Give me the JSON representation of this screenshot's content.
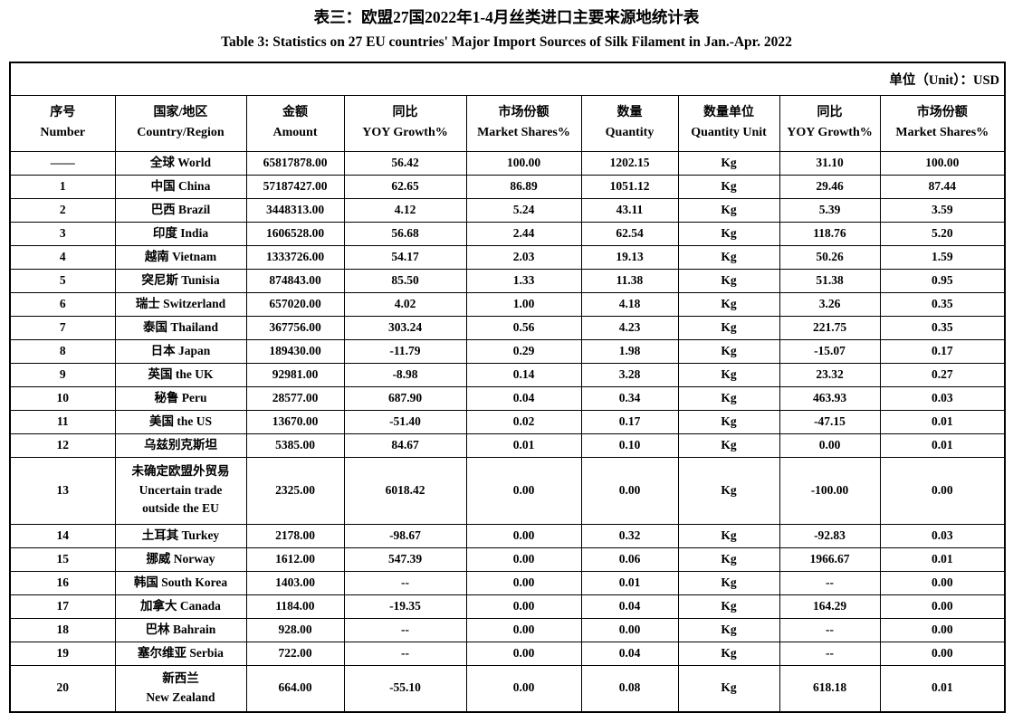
{
  "title_zh": "表三：欧盟27国2022年1-4月丝类进口主要来源地统计表",
  "title_en": "Table 3: Statistics on 27 EU countries' Major Import Sources of Silk Filament in Jan.-Apr. 2022",
  "unit_label": "单位（Unit）：USD",
  "colors": {
    "text": "#000000",
    "border": "#000000",
    "background": "#ffffff"
  },
  "table": {
    "columns": [
      {
        "key": "number",
        "zh": "序号",
        "en": "Number"
      },
      {
        "key": "country",
        "zh": "国家/地区",
        "en": "Country/Region"
      },
      {
        "key": "amount",
        "zh": "金额",
        "en": "Amount"
      },
      {
        "key": "yoy_amount",
        "zh": "同比",
        "en": "YOY Growth%"
      },
      {
        "key": "market_share_amount",
        "zh": "市场份额",
        "en": "Market Shares%"
      },
      {
        "key": "quantity",
        "zh": "数量",
        "en": "Quantity"
      },
      {
        "key": "quantity_unit",
        "zh": "数量单位",
        "en": "Quantity Unit"
      },
      {
        "key": "yoy_quantity",
        "zh": "同比",
        "en": "YOY Growth%"
      },
      {
        "key": "market_share_quantity",
        "zh": "市场份额",
        "en": "Market Shares%"
      }
    ],
    "rows": [
      {
        "number": "——",
        "country": [
          "全球 World"
        ],
        "amount": "65817878.00",
        "yoy_amount": "56.42",
        "market_share_amount": "100.00",
        "quantity": "1202.15",
        "quantity_unit": "Kg",
        "yoy_quantity": "31.10",
        "market_share_quantity": "100.00",
        "lines": 1
      },
      {
        "number": "1",
        "country": [
          "中国 China"
        ],
        "amount": "57187427.00",
        "yoy_amount": "62.65",
        "market_share_amount": "86.89",
        "quantity": "1051.12",
        "quantity_unit": "Kg",
        "yoy_quantity": "29.46",
        "market_share_quantity": "87.44",
        "lines": 1
      },
      {
        "number": "2",
        "country": [
          "巴西 Brazil"
        ],
        "amount": "3448313.00",
        "yoy_amount": "4.12",
        "market_share_amount": "5.24",
        "quantity": "43.11",
        "quantity_unit": "Kg",
        "yoy_quantity": "5.39",
        "market_share_quantity": "3.59",
        "lines": 1
      },
      {
        "number": "3",
        "country": [
          "印度 India"
        ],
        "amount": "1606528.00",
        "yoy_amount": "56.68",
        "market_share_amount": "2.44",
        "quantity": "62.54",
        "quantity_unit": "Kg",
        "yoy_quantity": "118.76",
        "market_share_quantity": "5.20",
        "lines": 1
      },
      {
        "number": "4",
        "country": [
          "越南 Vietnam"
        ],
        "amount": "1333726.00",
        "yoy_amount": "54.17",
        "market_share_amount": "2.03",
        "quantity": "19.13",
        "quantity_unit": "Kg",
        "yoy_quantity": "50.26",
        "market_share_quantity": "1.59",
        "lines": 1
      },
      {
        "number": "5",
        "country": [
          "突尼斯 Tunisia"
        ],
        "amount": "874843.00",
        "yoy_amount": "85.50",
        "market_share_amount": "1.33",
        "quantity": "11.38",
        "quantity_unit": "Kg",
        "yoy_quantity": "51.38",
        "market_share_quantity": "0.95",
        "lines": 1
      },
      {
        "number": "6",
        "country": [
          "瑞士 Switzerland"
        ],
        "amount": "657020.00",
        "yoy_amount": "4.02",
        "market_share_amount": "1.00",
        "quantity": "4.18",
        "quantity_unit": "Kg",
        "yoy_quantity": "3.26",
        "market_share_quantity": "0.35",
        "lines": 1
      },
      {
        "number": "7",
        "country": [
          "泰国 Thailand"
        ],
        "amount": "367756.00",
        "yoy_amount": "303.24",
        "market_share_amount": "0.56",
        "quantity": "4.23",
        "quantity_unit": "Kg",
        "yoy_quantity": "221.75",
        "market_share_quantity": "0.35",
        "lines": 1
      },
      {
        "number": "8",
        "country": [
          "日本 Japan"
        ],
        "amount": "189430.00",
        "yoy_amount": "-11.79",
        "market_share_amount": "0.29",
        "quantity": "1.98",
        "quantity_unit": "Kg",
        "yoy_quantity": "-15.07",
        "market_share_quantity": "0.17",
        "lines": 1
      },
      {
        "number": "9",
        "country": [
          "英国 the UK"
        ],
        "amount": "92981.00",
        "yoy_amount": "-8.98",
        "market_share_amount": "0.14",
        "quantity": "3.28",
        "quantity_unit": "Kg",
        "yoy_quantity": "23.32",
        "market_share_quantity": "0.27",
        "lines": 1
      },
      {
        "number": "10",
        "country": [
          "秘鲁 Peru"
        ],
        "amount": "28577.00",
        "yoy_amount": "687.90",
        "market_share_amount": "0.04",
        "quantity": "0.34",
        "quantity_unit": "Kg",
        "yoy_quantity": "463.93",
        "market_share_quantity": "0.03",
        "lines": 1
      },
      {
        "number": "11",
        "country": [
          "美国 the US"
        ],
        "amount": "13670.00",
        "yoy_amount": "-51.40",
        "market_share_amount": "0.02",
        "quantity": "0.17",
        "quantity_unit": "Kg",
        "yoy_quantity": "-47.15",
        "market_share_quantity": "0.01",
        "lines": 1
      },
      {
        "number": "12",
        "country": [
          "乌兹别克斯坦"
        ],
        "amount": "5385.00",
        "yoy_amount": "84.67",
        "market_share_amount": "0.01",
        "quantity": "0.10",
        "quantity_unit": "Kg",
        "yoy_quantity": "0.00",
        "market_share_quantity": "0.01",
        "lines": 1
      },
      {
        "number": "13",
        "country": [
          "未确定欧盟外贸易",
          "Uncertain trade",
          "outside the EU"
        ],
        "amount": "2325.00",
        "yoy_amount": "6018.42",
        "market_share_amount": "0.00",
        "quantity": "0.00",
        "quantity_unit": "Kg",
        "yoy_quantity": "-100.00",
        "market_share_quantity": "0.00",
        "lines": 3
      },
      {
        "number": "14",
        "country": [
          "土耳其 Turkey"
        ],
        "amount": "2178.00",
        "yoy_amount": "-98.67",
        "market_share_amount": "0.00",
        "quantity": "0.32",
        "quantity_unit": "Kg",
        "yoy_quantity": "-92.83",
        "market_share_quantity": "0.03",
        "lines": 1
      },
      {
        "number": "15",
        "country": [
          "挪威 Norway"
        ],
        "amount": "1612.00",
        "yoy_amount": "547.39",
        "market_share_amount": "0.00",
        "quantity": "0.06",
        "quantity_unit": "Kg",
        "yoy_quantity": "1966.67",
        "market_share_quantity": "0.01",
        "lines": 1
      },
      {
        "number": "16",
        "country": [
          "韩国 South Korea"
        ],
        "amount": "1403.00",
        "yoy_amount": "--",
        "market_share_amount": "0.00",
        "quantity": "0.01",
        "quantity_unit": "Kg",
        "yoy_quantity": "--",
        "market_share_quantity": "0.00",
        "lines": 1
      },
      {
        "number": "17",
        "country": [
          "加拿大 Canada"
        ],
        "amount": "1184.00",
        "yoy_amount": "-19.35",
        "market_share_amount": "0.00",
        "quantity": "0.04",
        "quantity_unit": "Kg",
        "yoy_quantity": "164.29",
        "market_share_quantity": "0.00",
        "lines": 1
      },
      {
        "number": "18",
        "country": [
          "巴林 Bahrain"
        ],
        "amount": "928.00",
        "yoy_amount": "--",
        "market_share_amount": "0.00",
        "quantity": "0.00",
        "quantity_unit": "Kg",
        "yoy_quantity": "--",
        "market_share_quantity": "0.00",
        "lines": 1
      },
      {
        "number": "19",
        "country": [
          "塞尔维亚 Serbia"
        ],
        "amount": "722.00",
        "yoy_amount": "--",
        "market_share_amount": "0.00",
        "quantity": "0.04",
        "quantity_unit": "Kg",
        "yoy_quantity": "--",
        "market_share_quantity": "0.00",
        "lines": 1
      },
      {
        "number": "20",
        "country": [
          "新西兰",
          "New Zealand"
        ],
        "amount": "664.00",
        "yoy_amount": "-55.10",
        "market_share_amount": "0.00",
        "quantity": "0.08",
        "quantity_unit": "Kg",
        "yoy_quantity": "618.18",
        "market_share_quantity": "0.01",
        "lines": 2
      }
    ]
  }
}
